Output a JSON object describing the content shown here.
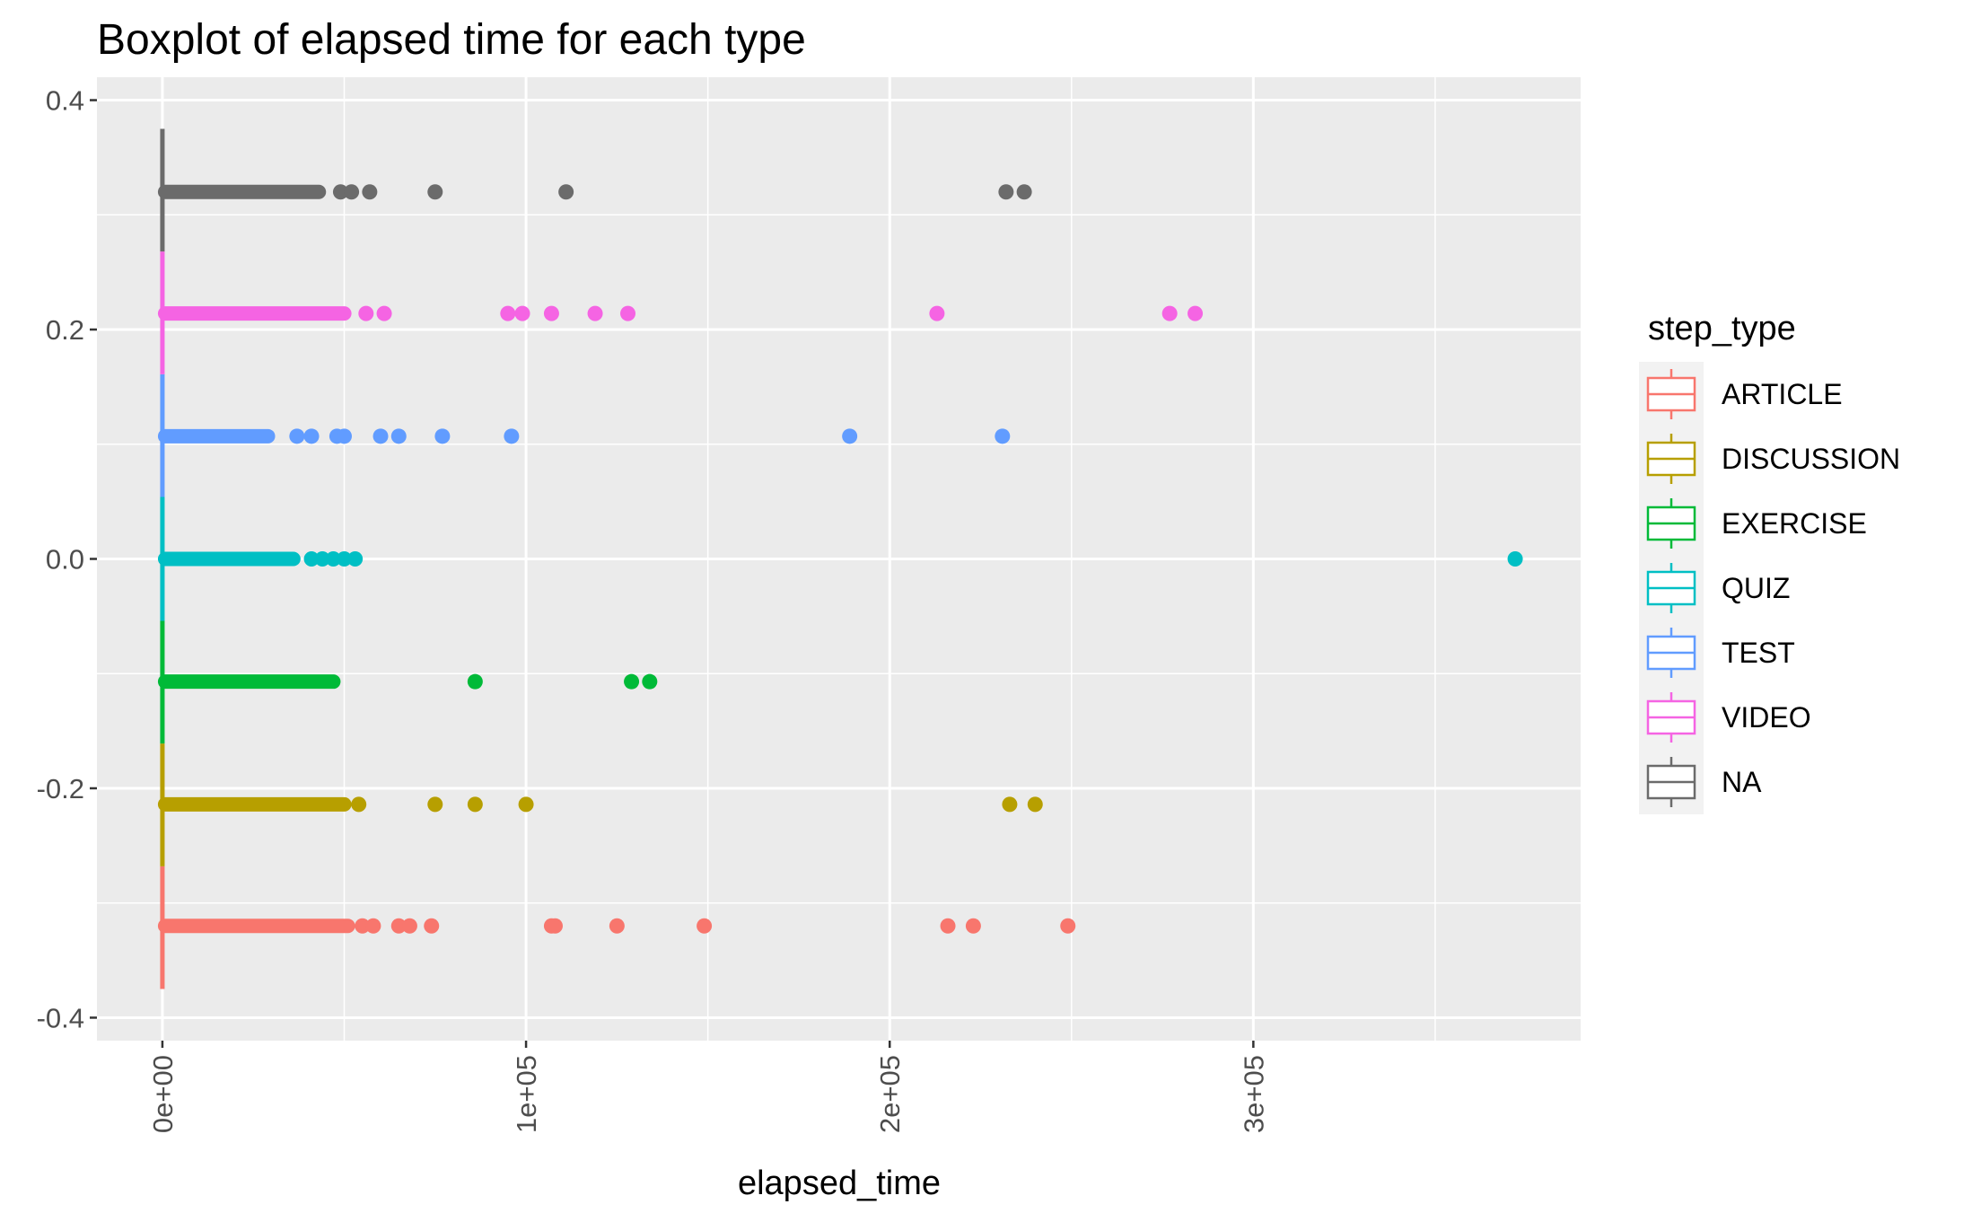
{
  "chart_data": {
    "type": "boxplot",
    "title": "Boxplot of elapsed time for each type",
    "xlabel": "elapsed_time",
    "ylabel": "",
    "xlim": [
      -18000,
      390000
    ],
    "ylim": [
      -0.42,
      0.42
    ],
    "x_ticks": [
      {
        "value": 0,
        "label": "0e+00"
      },
      {
        "value": 100000,
        "label": "1e+05"
      },
      {
        "value": 200000,
        "label": "2e+05"
      },
      {
        "value": 300000,
        "label": "3e+05"
      }
    ],
    "x_minor": [
      50000,
      150000,
      250000,
      350000
    ],
    "y_ticks": [
      {
        "value": 0.4,
        "label": "0.4"
      },
      {
        "value": 0.2,
        "label": "0.2"
      },
      {
        "value": 0.0,
        "label": "0.0"
      },
      {
        "value": -0.2,
        "label": "-0.2"
      },
      {
        "value": -0.4,
        "label": "-0.4"
      }
    ],
    "y_minor": [
      0.3,
      0.1,
      -0.1,
      -0.3
    ],
    "grid": true,
    "legend": {
      "title": "step_type",
      "position": "right"
    },
    "series": [
      {
        "name": "ARTICLE",
        "color": "#F8766D",
        "y": -0.32,
        "y_range": [
          -0.375,
          -0.268
        ],
        "dense_max": 53000,
        "outliers": [
          55000,
          58000,
          65000,
          68000,
          74000,
          107000,
          108000,
          125000,
          149000,
          216000,
          223000,
          249000
        ]
      },
      {
        "name": "DISCUSSION",
        "color": "#B79F00",
        "y": -0.214,
        "y_range": [
          -0.268,
          -0.161
        ],
        "dense_max": 52000,
        "outliers": [
          54000,
          75000,
          86000,
          100000,
          233000,
          240000
        ]
      },
      {
        "name": "EXERCISE",
        "color": "#00BA38",
        "y": -0.107,
        "y_range": [
          -0.161,
          -0.054
        ],
        "dense_max": 49000,
        "outliers": [
          86000,
          129000,
          134000
        ]
      },
      {
        "name": "QUIZ",
        "color": "#00BFC4",
        "y": 0.0,
        "y_range": [
          -0.054,
          0.054
        ],
        "dense_max": 38000,
        "outliers": [
          41000,
          44000,
          47000,
          50000,
          53000,
          372000
        ]
      },
      {
        "name": "TEST",
        "color": "#619CFF",
        "y": 0.107,
        "y_range": [
          0.054,
          0.161
        ],
        "dense_max": 31000,
        "outliers": [
          37000,
          41000,
          48000,
          50000,
          60000,
          65000,
          77000,
          96000,
          189000,
          231000
        ]
      },
      {
        "name": "VIDEO",
        "color": "#F564E3",
        "y": 0.214,
        "y_range": [
          0.161,
          0.268
        ],
        "dense_max": 52000,
        "outliers": [
          56000,
          61000,
          95000,
          99000,
          107000,
          119000,
          128000,
          213000,
          277000,
          284000
        ]
      },
      {
        "name": "NA",
        "color": "#6B6B6B",
        "y": 0.32,
        "y_range": [
          0.268,
          0.375
        ],
        "dense_max": 45000,
        "outliers": [
          49000,
          52000,
          57000,
          75000,
          111000,
          232000,
          237000
        ]
      }
    ]
  }
}
